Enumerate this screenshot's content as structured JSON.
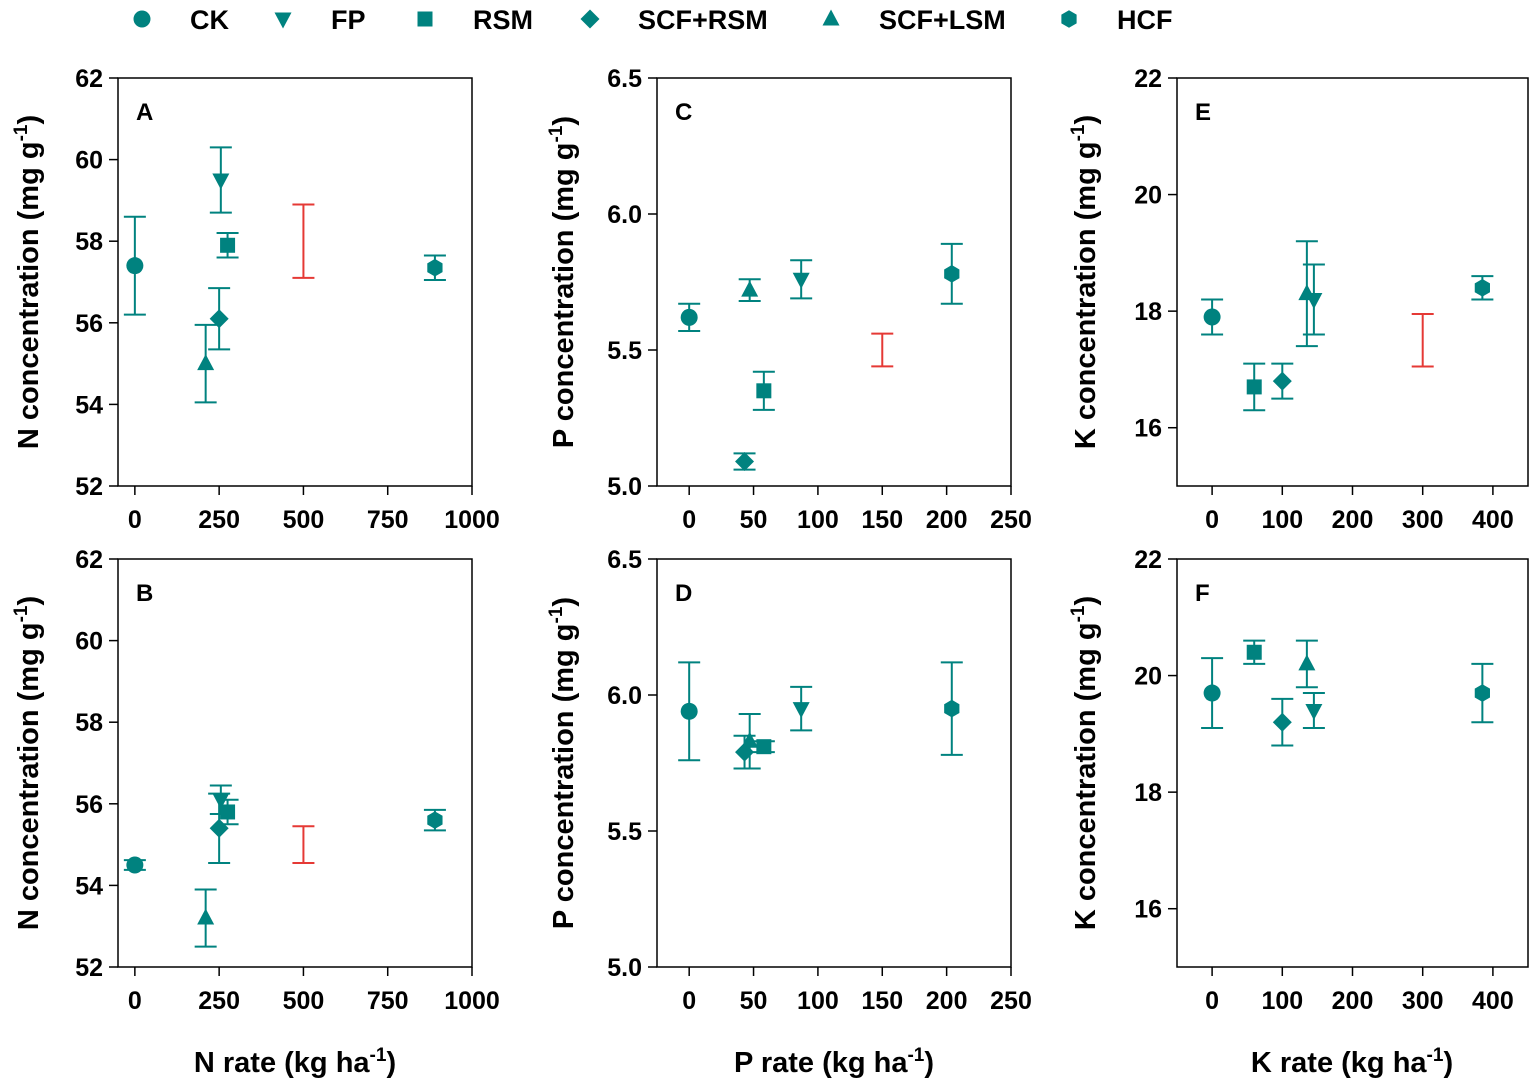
{
  "colors": {
    "marker": "#00827f",
    "lsd": "#e53935",
    "axis": "#000000"
  },
  "legend": [
    {
      "label": "CK",
      "marker": "circle"
    },
    {
      "label": "FP",
      "marker": "triangle-down"
    },
    {
      "label": "RSM",
      "marker": "square"
    },
    {
      "label": "SCF+RSM",
      "marker": "diamond"
    },
    {
      "label": "SCF+LSM",
      "marker": "triangle-up"
    },
    {
      "label": "HCF",
      "marker": "hexagon"
    }
  ],
  "x_titles": {
    "N": {
      "main": "N rate (kg ha",
      "sup": "-1",
      "tail": ")"
    },
    "P": {
      "main": "P rate (kg ha",
      "sup": "-1",
      "tail": ")"
    },
    "K": {
      "main": "K rate (kg ha",
      "sup": "-1",
      "tail": ")"
    }
  },
  "chart_data": [
    {
      "type": "scatter",
      "panel": "A",
      "column": "N",
      "ylabel": "N concentration (mg g",
      "ylabel_sup": "-1",
      "ylabel_tail": ")",
      "xlim": [
        -50,
        1000
      ],
      "ylim": [
        52,
        62
      ],
      "xticks": [
        0,
        250,
        500,
        750,
        1000
      ],
      "yticks": [
        52,
        54,
        56,
        58,
        60,
        62
      ],
      "points": [
        {
          "series": "CK",
          "marker": "circle",
          "x": 0,
          "y": 57.4,
          "err": 1.2
        },
        {
          "series": "FP",
          "marker": "triangle-down",
          "x": 255,
          "y": 59.5,
          "err": 0.8
        },
        {
          "series": "RSM",
          "marker": "square",
          "x": 275,
          "y": 57.9,
          "err": 0.3
        },
        {
          "series": "SCF+RSM",
          "marker": "diamond",
          "x": 250,
          "y": 56.1,
          "err": 0.75
        },
        {
          "series": "SCF+LSM",
          "marker": "triangle-up",
          "x": 210,
          "y": 55.0,
          "err": 0.95
        },
        {
          "series": "HCF",
          "marker": "hexagon",
          "x": 890,
          "y": 57.35,
          "err": 0.3
        }
      ],
      "lsd_bar": {
        "x": 500,
        "low": 57.1,
        "high": 58.9
      }
    },
    {
      "type": "scatter",
      "panel": "C",
      "column": "P",
      "ylabel": "P concentration (mg g",
      "ylabel_sup": "-1",
      "ylabel_tail": ")",
      "xlim": [
        -25,
        250
      ],
      "ylim": [
        5.0,
        6.5
      ],
      "xticks": [
        0,
        50,
        100,
        150,
        200,
        250
      ],
      "yticks": [
        5.0,
        5.5,
        6.0,
        6.5
      ],
      "points": [
        {
          "series": "CK",
          "marker": "circle",
          "x": 0,
          "y": 5.62,
          "err": 0.05
        },
        {
          "series": "FP",
          "marker": "triangle-down",
          "x": 87,
          "y": 5.76,
          "err": 0.07
        },
        {
          "series": "RSM",
          "marker": "square",
          "x": 58,
          "y": 5.35,
          "err": 0.07
        },
        {
          "series": "SCF+RSM",
          "marker": "diamond",
          "x": 43,
          "y": 5.09,
          "err": 0.03
        },
        {
          "series": "SCF+LSM",
          "marker": "triangle-up",
          "x": 47,
          "y": 5.72,
          "err": 0.04
        },
        {
          "series": "HCF",
          "marker": "hexagon",
          "x": 204,
          "y": 5.78,
          "err": 0.11
        }
      ],
      "lsd_bar": {
        "x": 150,
        "low": 5.44,
        "high": 5.56
      }
    },
    {
      "type": "scatter",
      "panel": "E",
      "column": "K",
      "ylabel": "K concentration (mg g",
      "ylabel_sup": "-1",
      "ylabel_tail": ")",
      "xlim": [
        -50,
        450
      ],
      "ylim": [
        15,
        22
      ],
      "xticks": [
        0,
        100,
        200,
        300,
        400
      ],
      "yticks": [
        16,
        18,
        20,
        22
      ],
      "points": [
        {
          "series": "CK",
          "marker": "circle",
          "x": 0,
          "y": 17.9,
          "err": 0.3
        },
        {
          "series": "FP",
          "marker": "triangle-down",
          "x": 145,
          "y": 18.2,
          "err": 0.6
        },
        {
          "series": "RSM",
          "marker": "square",
          "x": 60,
          "y": 16.7,
          "err": 0.4
        },
        {
          "series": "SCF+RSM",
          "marker": "diamond",
          "x": 100,
          "y": 16.8,
          "err": 0.3
        },
        {
          "series": "SCF+LSM",
          "marker": "triangle-up",
          "x": 135,
          "y": 18.3,
          "err": 0.9
        },
        {
          "series": "HCF",
          "marker": "hexagon",
          "x": 385,
          "y": 18.4,
          "err": 0.2
        }
      ],
      "lsd_bar": {
        "x": 300,
        "low": 17.05,
        "high": 17.95
      }
    },
    {
      "type": "scatter",
      "panel": "B",
      "column": "N",
      "ylabel": "N concentration (mg g",
      "ylabel_sup": "-1",
      "ylabel_tail": ")",
      "xlim": [
        -50,
        1000
      ],
      "ylim": [
        52,
        62
      ],
      "xticks": [
        0,
        250,
        500,
        750,
        1000
      ],
      "yticks": [
        52,
        54,
        56,
        58,
        60,
        62
      ],
      "points": [
        {
          "series": "CK",
          "marker": "circle",
          "x": 0,
          "y": 54.5,
          "err": 0.12
        },
        {
          "series": "FP",
          "marker": "triangle-down",
          "x": 255,
          "y": 56.1,
          "err": 0.35
        },
        {
          "series": "RSM",
          "marker": "square",
          "x": 275,
          "y": 55.8,
          "err": 0.3
        },
        {
          "series": "SCF+RSM",
          "marker": "diamond",
          "x": 250,
          "y": 55.4,
          "err": 0.85
        },
        {
          "series": "SCF+LSM",
          "marker": "triangle-up",
          "x": 210,
          "y": 53.2,
          "err": 0.7
        },
        {
          "series": "HCF",
          "marker": "hexagon",
          "x": 890,
          "y": 55.6,
          "err": 0.25
        }
      ],
      "lsd_bar": {
        "x": 500,
        "low": 54.55,
        "high": 55.45
      }
    },
    {
      "type": "scatter",
      "panel": "D",
      "column": "P",
      "ylabel": "P concentration (mg g",
      "ylabel_sup": "-1",
      "ylabel_tail": ")",
      "xlim": [
        -25,
        250
      ],
      "ylim": [
        5.0,
        6.5
      ],
      "xticks": [
        0,
        50,
        100,
        150,
        200,
        250
      ],
      "yticks": [
        5.0,
        5.5,
        6.0,
        6.5
      ],
      "points": [
        {
          "series": "CK",
          "marker": "circle",
          "x": 0,
          "y": 5.94,
          "err": 0.18
        },
        {
          "series": "FP",
          "marker": "triangle-down",
          "x": 87,
          "y": 5.95,
          "err": 0.08
        },
        {
          "series": "RSM",
          "marker": "square",
          "x": 58,
          "y": 5.81,
          "err": 0.02
        },
        {
          "series": "SCF+RSM",
          "marker": "diamond",
          "x": 43,
          "y": 5.79,
          "err": 0.06
        },
        {
          "series": "SCF+LSM",
          "marker": "triangle-up",
          "x": 47,
          "y": 5.83,
          "err": 0.1
        },
        {
          "series": "HCF",
          "marker": "hexagon",
          "x": 204,
          "y": 5.95,
          "err": 0.17
        }
      ]
    },
    {
      "type": "scatter",
      "panel": "F",
      "column": "K",
      "ylabel": "K concentration (mg g",
      "ylabel_sup": "-1",
      "ylabel_tail": ")",
      "xlim": [
        -50,
        450
      ],
      "ylim": [
        15,
        22
      ],
      "xticks": [
        0,
        100,
        200,
        300,
        400
      ],
      "yticks": [
        16,
        18,
        20,
        22
      ],
      "points": [
        {
          "series": "CK",
          "marker": "circle",
          "x": 0,
          "y": 19.7,
          "err": 0.6
        },
        {
          "series": "FP",
          "marker": "triangle-down",
          "x": 145,
          "y": 19.4,
          "err": 0.3
        },
        {
          "series": "RSM",
          "marker": "square",
          "x": 60,
          "y": 20.4,
          "err": 0.2
        },
        {
          "series": "SCF+RSM",
          "marker": "diamond",
          "x": 100,
          "y": 19.2,
          "err": 0.4
        },
        {
          "series": "SCF+LSM",
          "marker": "triangle-up",
          "x": 135,
          "y": 20.2,
          "err": 0.4
        },
        {
          "series": "HCF",
          "marker": "hexagon",
          "x": 385,
          "y": 19.7,
          "err": 0.5
        }
      ]
    }
  ]
}
